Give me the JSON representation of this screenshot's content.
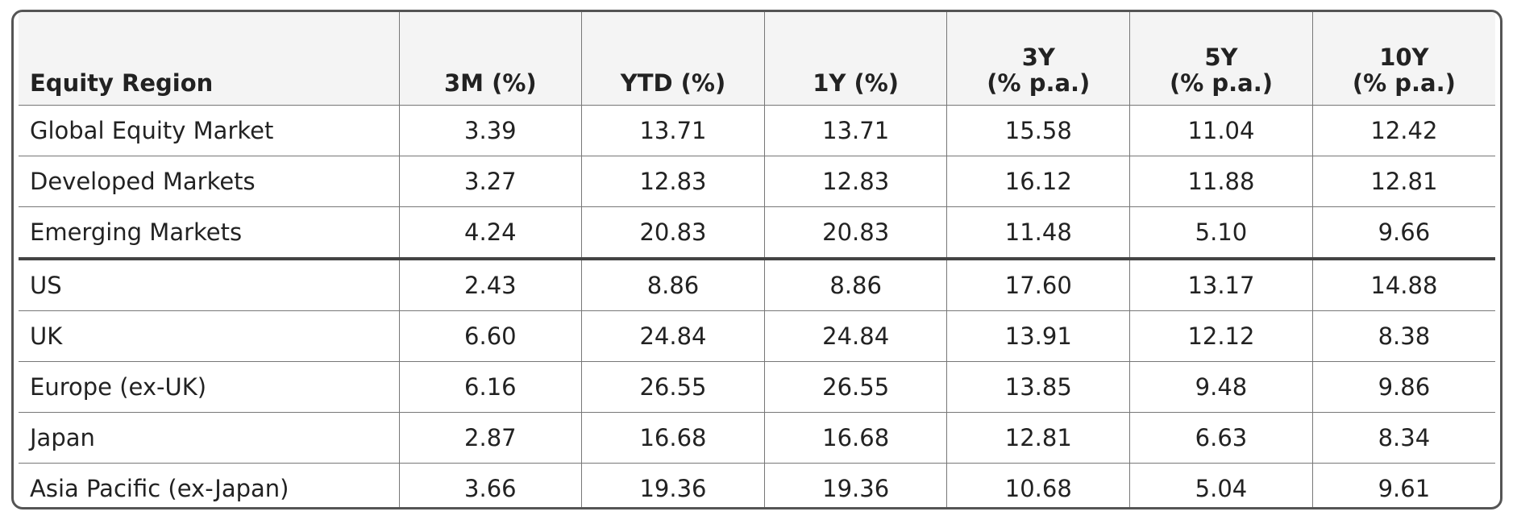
{
  "table": {
    "header": [
      "Equity Region",
      "3M (%)",
      "YTD (%)",
      "1Y (%)",
      "3Y\n(% p.a.)",
      "5Y\n(% p.a.)",
      "10Y\n(% p.a.)"
    ],
    "row_groups": [
      [
        [
          "Global Equity Market",
          "3.39",
          "13.71",
          "13.71",
          "15.58",
          "11.04",
          "12.42"
        ],
        [
          "Developed Markets",
          "3.27",
          "12.83",
          "12.83",
          "16.12",
          "11.88",
          "12.81"
        ],
        [
          "Emerging Markets",
          "4.24",
          "20.83",
          "20.83",
          "11.48",
          "5.10",
          "9.66"
        ]
      ],
      [
        [
          "US",
          "2.43",
          "8.86",
          "8.86",
          "17.60",
          "13.17",
          "14.88"
        ],
        [
          "UK",
          "6.60",
          "24.84",
          "24.84",
          "13.91",
          "12.12",
          "8.38"
        ],
        [
          "Europe (ex-UK)",
          "6.16",
          "26.55",
          "26.55",
          "13.85",
          "9.48",
          "9.86"
        ],
        [
          "Japan",
          "2.87",
          "16.68",
          "16.68",
          "12.81",
          "6.63",
          "8.34"
        ],
        [
          "Asia Pacific (ex-Japan)",
          "3.66",
          "19.36",
          "19.36",
          "10.68",
          "5.04",
          "9.61"
        ]
      ]
    ]
  }
}
